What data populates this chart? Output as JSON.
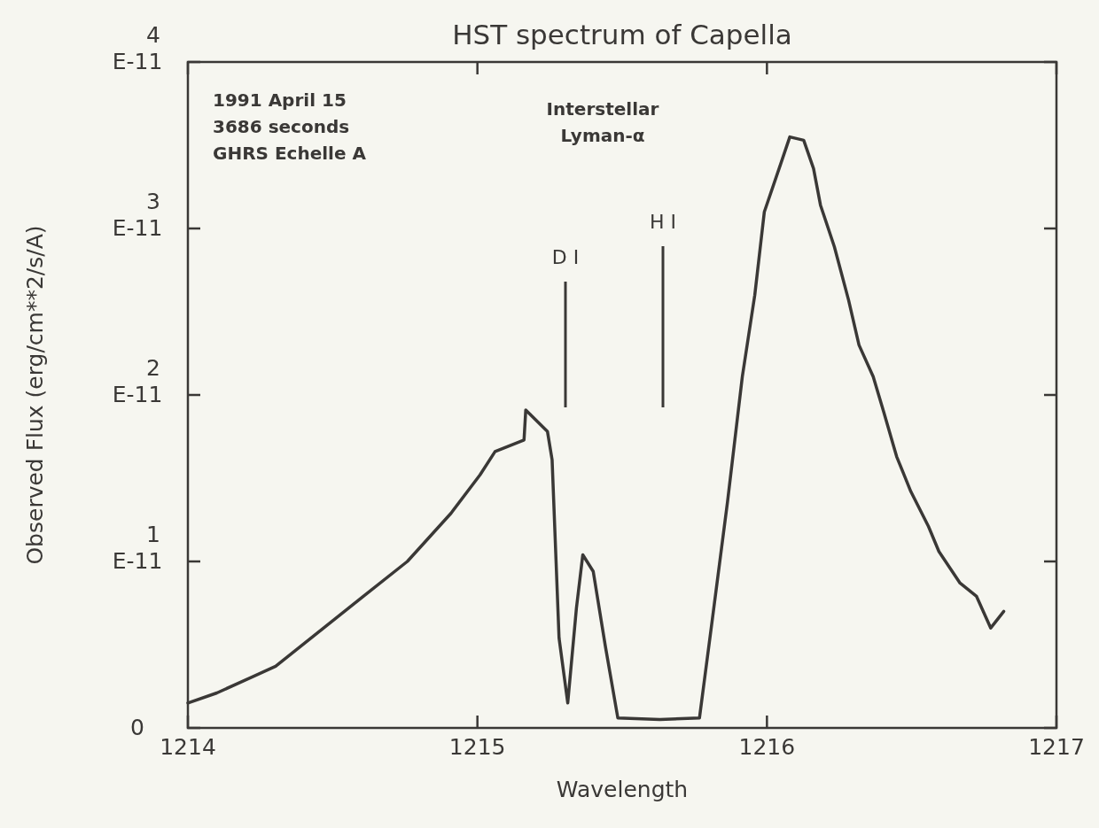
{
  "chart_data": {
    "type": "line",
    "title": "HST spectrum of Capella",
    "xlabel": "Wavelength",
    "ylabel": "Observed Flux (erg/cm**2/s/A)",
    "xlim": [
      1214,
      1217
    ],
    "xticks": [
      1214,
      1215,
      1216,
      1217
    ],
    "ylim": [
      0,
      4e-11
    ],
    "yticks": [
      {
        "value": 0,
        "label": "0"
      },
      {
        "value": 1e-11,
        "label": "1E-11"
      },
      {
        "value": 2e-11,
        "label": "2E-11"
      },
      {
        "value": 3e-11,
        "label": "3E-11"
      },
      {
        "value": 4e-11,
        "label": "4E-11"
      }
    ],
    "marker": "none",
    "line_style": "solid",
    "series": [
      {
        "color": "#3a3836",
        "x": [
          1214.0,
          1214.1,
          1214.303,
          1214.606,
          1214.758,
          1214.909,
          1215.009,
          1215.061,
          1215.161,
          1215.167,
          1215.242,
          1215.258,
          1215.282,
          1215.312,
          1215.342,
          1215.364,
          1215.4,
          1215.442,
          1215.485,
          1215.63,
          1215.767,
          1215.809,
          1215.864,
          1215.915,
          1215.958,
          1215.991,
          1216.048,
          1216.079,
          1216.127,
          1216.161,
          1216.185,
          1216.233,
          1216.282,
          1216.318,
          1216.367,
          1216.403,
          1216.448,
          1216.497,
          1216.558,
          1216.594,
          1216.667,
          1216.724,
          1216.773,
          1216.818
        ],
        "values": [
          1.5e-12,
          2.1e-12,
          3.7e-12,
          7.9e-12,
          1e-11,
          1.29e-11,
          1.52e-11,
          1.66e-11,
          1.73e-11,
          1.91e-11,
          1.78e-11,
          1.61e-11,
          5.4e-12,
          1.5e-12,
          7.2e-12,
          1.04e-11,
          9.4e-12,
          4.9e-12,
          6e-13,
          5e-13,
          6e-13,
          6.2e-12,
          1.36e-11,
          2.11e-11,
          2.6e-11,
          3.1e-11,
          3.39e-11,
          3.55e-11,
          3.53e-11,
          3.36e-11,
          3.14e-11,
          2.89e-11,
          2.57e-11,
          2.3e-11,
          2.11e-11,
          1.9e-11,
          1.63e-11,
          1.42e-11,
          1.21e-11,
          1.06e-11,
          8.7e-12,
          7.9e-12,
          6e-12,
          7e-12
        ]
      }
    ],
    "annotations": [
      "1991 April 15\n3686 seconds\nGHRS Echelle A",
      "Interstellar\nLyman-α",
      "D I",
      "H I"
    ]
  }
}
